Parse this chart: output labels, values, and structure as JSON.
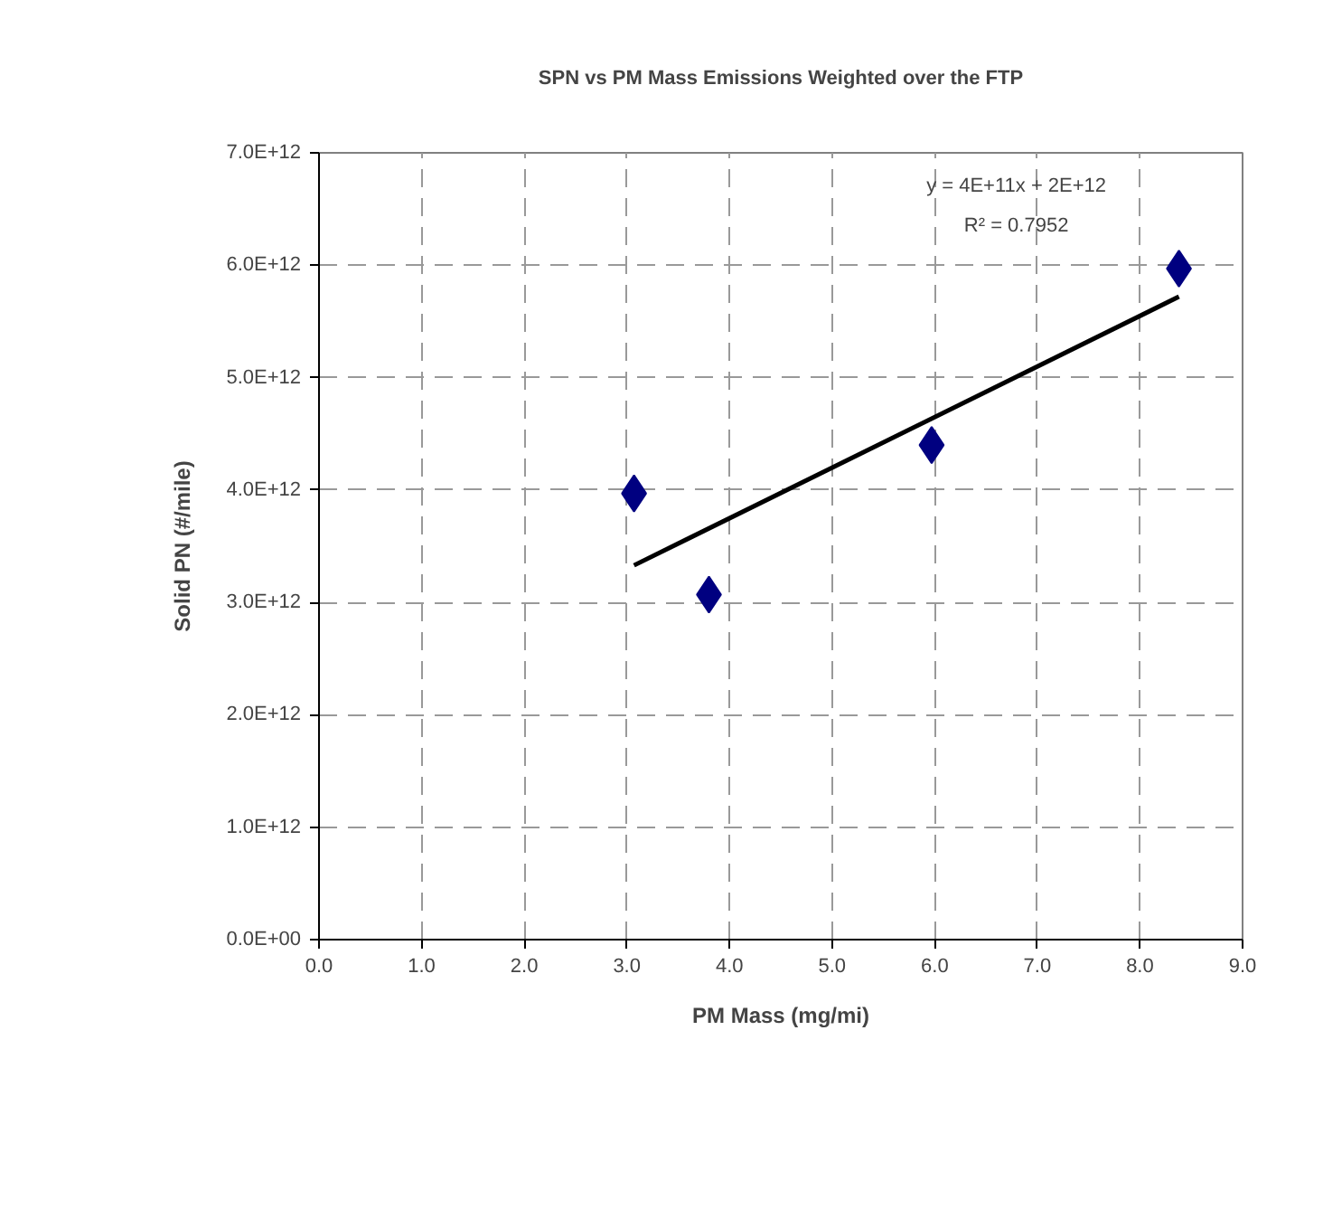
{
  "chart_data": {
    "type": "scatter",
    "title": "SPN vs PM Mass Emissions Weighted over the FTP",
    "xlabel": "PM Mass (mg/mi)",
    "ylabel": "Solid PN (#/mile)",
    "series": [
      {
        "color": "#000080",
        "marker": "diamond",
        "x": [
          3.07,
          3.8,
          5.97,
          8.38
        ],
        "values": [
          3970000000000.0,
          3070000000000.0,
          4400000000000.0,
          5970000000000.0
        ]
      },
      {
        "type": "line",
        "color": "#000000",
        "marker": "none",
        "x": [
          3.07,
          8.38
        ],
        "values": [
          3330000000000.0,
          5720000000000.0
        ]
      }
    ],
    "annotations": [
      "y = 4E+11x + 2E+12",
      "R² = 0.7952"
    ],
    "xlim": [
      0,
      9
    ],
    "ylim": [
      0,
      7000000000000.0
    ],
    "xticks": [
      {
        "value": 0,
        "label": "0.0"
      },
      {
        "value": 1,
        "label": "1.0"
      },
      {
        "value": 2,
        "label": "2.0"
      },
      {
        "value": 3,
        "label": "3.0"
      },
      {
        "value": 4,
        "label": "4.0"
      },
      {
        "value": 5,
        "label": "5.0"
      },
      {
        "value": 6,
        "label": "6.0"
      },
      {
        "value": 7,
        "label": "7.0"
      },
      {
        "value": 8,
        "label": "8.0"
      },
      {
        "value": 9,
        "label": "9.0"
      }
    ],
    "yticks": [
      {
        "value": 0,
        "label": "0.0E+00"
      },
      {
        "value": 1000000000000.0,
        "label": "1.0E+12"
      },
      {
        "value": 2000000000000.0,
        "label": "2.0E+12"
      },
      {
        "value": 3000000000000.0,
        "label": "3.0E+12"
      },
      {
        "value": 4000000000000.0,
        "label": "4.0E+12"
      },
      {
        "value": 5000000000000.0,
        "label": "5.0E+12"
      },
      {
        "value": 6000000000000.0,
        "label": "6.0E+12"
      },
      {
        "value": 7000000000000.0,
        "label": "7.0E+12"
      }
    ],
    "grid": true
  }
}
